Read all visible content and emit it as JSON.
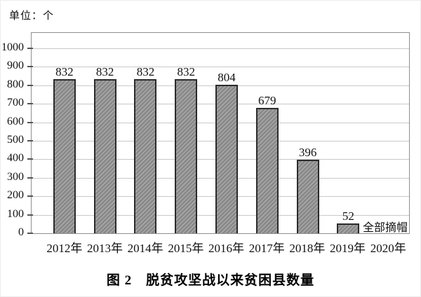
{
  "unit_label": "单位：个",
  "caption": "图 2　脱贫攻坚战以来贫困县数量",
  "chart_data": {
    "type": "bar",
    "title": "脱贫攻坚战以来贫困县数量",
    "figure_label": "图 2",
    "unit": "个",
    "categories": [
      "2012年",
      "2013年",
      "2014年",
      "2015年",
      "2016年",
      "2017年",
      "2018年",
      "2019年",
      "2020年"
    ],
    "values": [
      832,
      832,
      832,
      832,
      804,
      679,
      396,
      52,
      0
    ],
    "bar_value_labels": [
      "832",
      "832",
      "832",
      "832",
      "804",
      "679",
      "396",
      "52",
      ""
    ],
    "annotation": {
      "text": "全部摘帽",
      "category": "2020年"
    },
    "xlabel": "",
    "ylabel": "",
    "ylim": [
      0,
      1000
    ],
    "ytick_step": 100,
    "grid": true,
    "legend": false,
    "colors": {
      "bar_fill": "#888888",
      "bar_hatch": "#a8a8a8",
      "bar_border": "#2b2b2b",
      "gridline": "#c9c9c9",
      "frame": "#8f8f8f",
      "text": "#111111"
    }
  }
}
